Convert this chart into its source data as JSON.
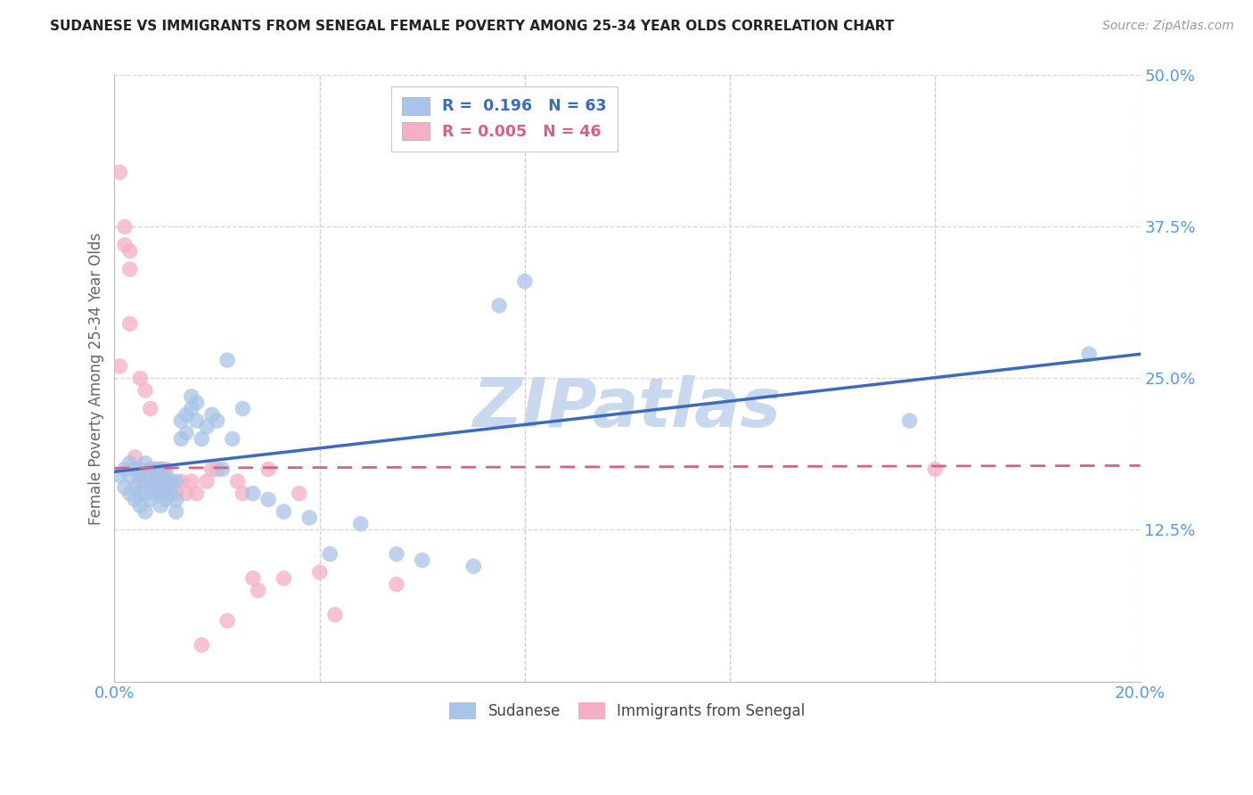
{
  "title": "SUDANESE VS IMMIGRANTS FROM SENEGAL FEMALE POVERTY AMONG 25-34 YEAR OLDS CORRELATION CHART",
  "source": "Source: ZipAtlas.com",
  "ylabel": "Female Poverty Among 25-34 Year Olds",
  "xlim": [
    0.0,
    0.2
  ],
  "ylim": [
    0.0,
    0.5
  ],
  "xticks": [
    0.0,
    0.04,
    0.08,
    0.12,
    0.16,
    0.2
  ],
  "yticks": [
    0.0,
    0.125,
    0.25,
    0.375,
    0.5
  ],
  "legend_labels": [
    "Sudanese",
    "Immigrants from Senegal"
  ],
  "blue_R": "0.196",
  "blue_N": "63",
  "pink_R": "0.005",
  "pink_N": "46",
  "blue_color": "#a8c4e8",
  "pink_color": "#f5afc5",
  "blue_line_color": "#3a6bbf",
  "pink_line_color": "#d95f8a",
  "watermark_color": "#c8d8ee",
  "blue_scatter_x": [
    0.001,
    0.002,
    0.002,
    0.003,
    0.003,
    0.003,
    0.004,
    0.004,
    0.004,
    0.005,
    0.005,
    0.005,
    0.006,
    0.006,
    0.006,
    0.006,
    0.007,
    0.007,
    0.007,
    0.008,
    0.008,
    0.008,
    0.009,
    0.009,
    0.009,
    0.009,
    0.01,
    0.01,
    0.01,
    0.011,
    0.011,
    0.012,
    0.012,
    0.012,
    0.013,
    0.013,
    0.014,
    0.014,
    0.015,
    0.015,
    0.016,
    0.016,
    0.017,
    0.018,
    0.019,
    0.02,
    0.021,
    0.022,
    0.023,
    0.025,
    0.027,
    0.03,
    0.033,
    0.038,
    0.042,
    0.048,
    0.055,
    0.06,
    0.07,
    0.075,
    0.08,
    0.155,
    0.19
  ],
  "blue_scatter_y": [
    0.17,
    0.16,
    0.175,
    0.155,
    0.17,
    0.18,
    0.15,
    0.16,
    0.175,
    0.145,
    0.155,
    0.17,
    0.14,
    0.155,
    0.165,
    0.18,
    0.15,
    0.16,
    0.175,
    0.155,
    0.165,
    0.175,
    0.145,
    0.155,
    0.165,
    0.175,
    0.15,
    0.16,
    0.17,
    0.155,
    0.165,
    0.14,
    0.15,
    0.165,
    0.2,
    0.215,
    0.205,
    0.22,
    0.225,
    0.235,
    0.215,
    0.23,
    0.2,
    0.21,
    0.22,
    0.215,
    0.175,
    0.265,
    0.2,
    0.225,
    0.155,
    0.15,
    0.14,
    0.135,
    0.105,
    0.13,
    0.105,
    0.1,
    0.095,
    0.31,
    0.33,
    0.215,
    0.27
  ],
  "pink_scatter_x": [
    0.001,
    0.001,
    0.002,
    0.002,
    0.003,
    0.003,
    0.003,
    0.004,
    0.004,
    0.005,
    0.005,
    0.005,
    0.006,
    0.006,
    0.007,
    0.007,
    0.008,
    0.008,
    0.009,
    0.009,
    0.009,
    0.01,
    0.01,
    0.01,
    0.011,
    0.012,
    0.013,
    0.014,
    0.015,
    0.016,
    0.017,
    0.018,
    0.019,
    0.02,
    0.022,
    0.024,
    0.025,
    0.027,
    0.028,
    0.03,
    0.033,
    0.036,
    0.04,
    0.043,
    0.055,
    0.16
  ],
  "pink_scatter_y": [
    0.42,
    0.26,
    0.36,
    0.375,
    0.34,
    0.355,
    0.295,
    0.175,
    0.185,
    0.165,
    0.175,
    0.25,
    0.165,
    0.24,
    0.225,
    0.175,
    0.165,
    0.175,
    0.155,
    0.165,
    0.175,
    0.155,
    0.165,
    0.175,
    0.165,
    0.155,
    0.165,
    0.155,
    0.165,
    0.155,
    0.03,
    0.165,
    0.175,
    0.175,
    0.05,
    0.165,
    0.155,
    0.085,
    0.075,
    0.175,
    0.085,
    0.155,
    0.09,
    0.055,
    0.08,
    0.175
  ],
  "blue_line_x0": 0.0,
  "blue_line_y0": 0.173,
  "blue_line_x1": 0.2,
  "blue_line_y1": 0.27,
  "pink_line_x0": 0.0,
  "pink_line_y0": 0.176,
  "pink_line_x1": 0.2,
  "pink_line_y1": 0.178
}
